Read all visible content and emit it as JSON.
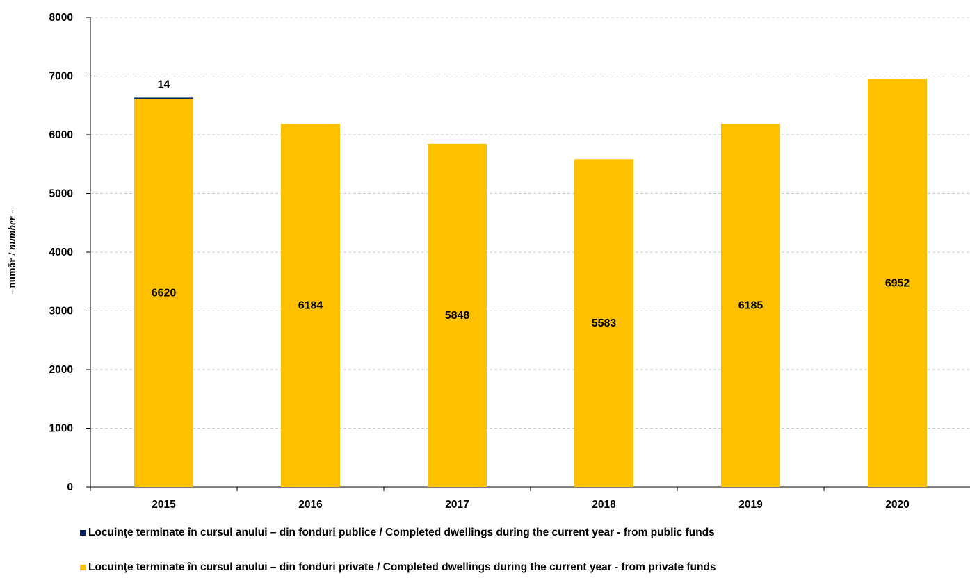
{
  "chart_data": {
    "type": "bar",
    "stacked": true,
    "categories": [
      "2015",
      "2016",
      "2017",
      "2018",
      "2019",
      "2020"
    ],
    "series": [
      {
        "name": "Locuinţe terminate în cursul anului – din fonduri private / Completed dwellings during the current year - from private funds",
        "color": "#FFC000",
        "values": [
          6620,
          6184,
          5848,
          5583,
          6185,
          6952
        ],
        "labels": [
          "6620",
          "6184",
          "5848",
          "5583",
          "6185",
          "6952"
        ]
      },
      {
        "name": "Locuinţe terminate în cursul anului – din fonduri publice / Completed dwellings during the current year - from public funds",
        "color": "#002060",
        "values": [
          14,
          0,
          0,
          0,
          0,
          0
        ],
        "labels": [
          "14",
          "",
          "",
          "",
          "",
          ""
        ]
      }
    ],
    "ylabel_main": "- număr / ",
    "ylabel_italic": "number",
    "ylabel_end": " -",
    "ylim": [
      0,
      8000
    ],
    "yticks": [
      "0",
      "1000",
      "2000",
      "3000",
      "4000",
      "5000",
      "6000",
      "7000",
      "8000"
    ],
    "grid": true,
    "legend_position": "bottom"
  }
}
